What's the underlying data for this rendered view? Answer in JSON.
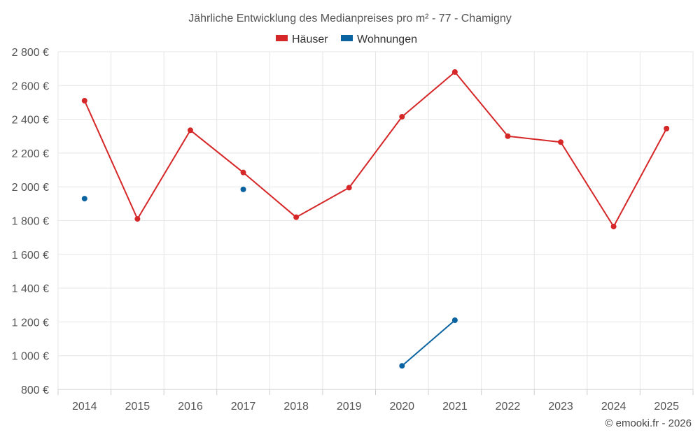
{
  "chart_data": {
    "type": "line",
    "title": "Jährliche Entwicklung des Medianpreises pro m² - 77 - Chamigny",
    "categories": [
      "2014",
      "2015",
      "2016",
      "2017",
      "2018",
      "2019",
      "2020",
      "2021",
      "2022",
      "2023",
      "2024",
      "2025"
    ],
    "ylim": [
      800,
      2800
    ],
    "yticks": [
      800,
      1000,
      1200,
      1400,
      1600,
      1800,
      2000,
      2200,
      2400,
      2600,
      2800
    ],
    "y_tick_labels": [
      "800 €",
      "1 000 €",
      "1 200 €",
      "1 400 €",
      "1 600 €",
      "1 800 €",
      "2 000 €",
      "2 200 €",
      "2 400 €",
      "2 600 €",
      "2 800 €"
    ],
    "grid": true,
    "legend_position": "top-center",
    "series": [
      {
        "name": "Häuser",
        "color": "#d62728",
        "values": [
          2510,
          1810,
          2335,
          2085,
          1820,
          1995,
          2415,
          2680,
          2300,
          2265,
          1765,
          2345
        ]
      },
      {
        "name": "Wohnungen",
        "color": "#0b64a0",
        "values": [
          1930,
          null,
          null,
          1985,
          null,
          null,
          940,
          1210,
          null,
          null,
          null,
          null
        ]
      }
    ]
  },
  "credit": "© emooki.fr - 2026"
}
